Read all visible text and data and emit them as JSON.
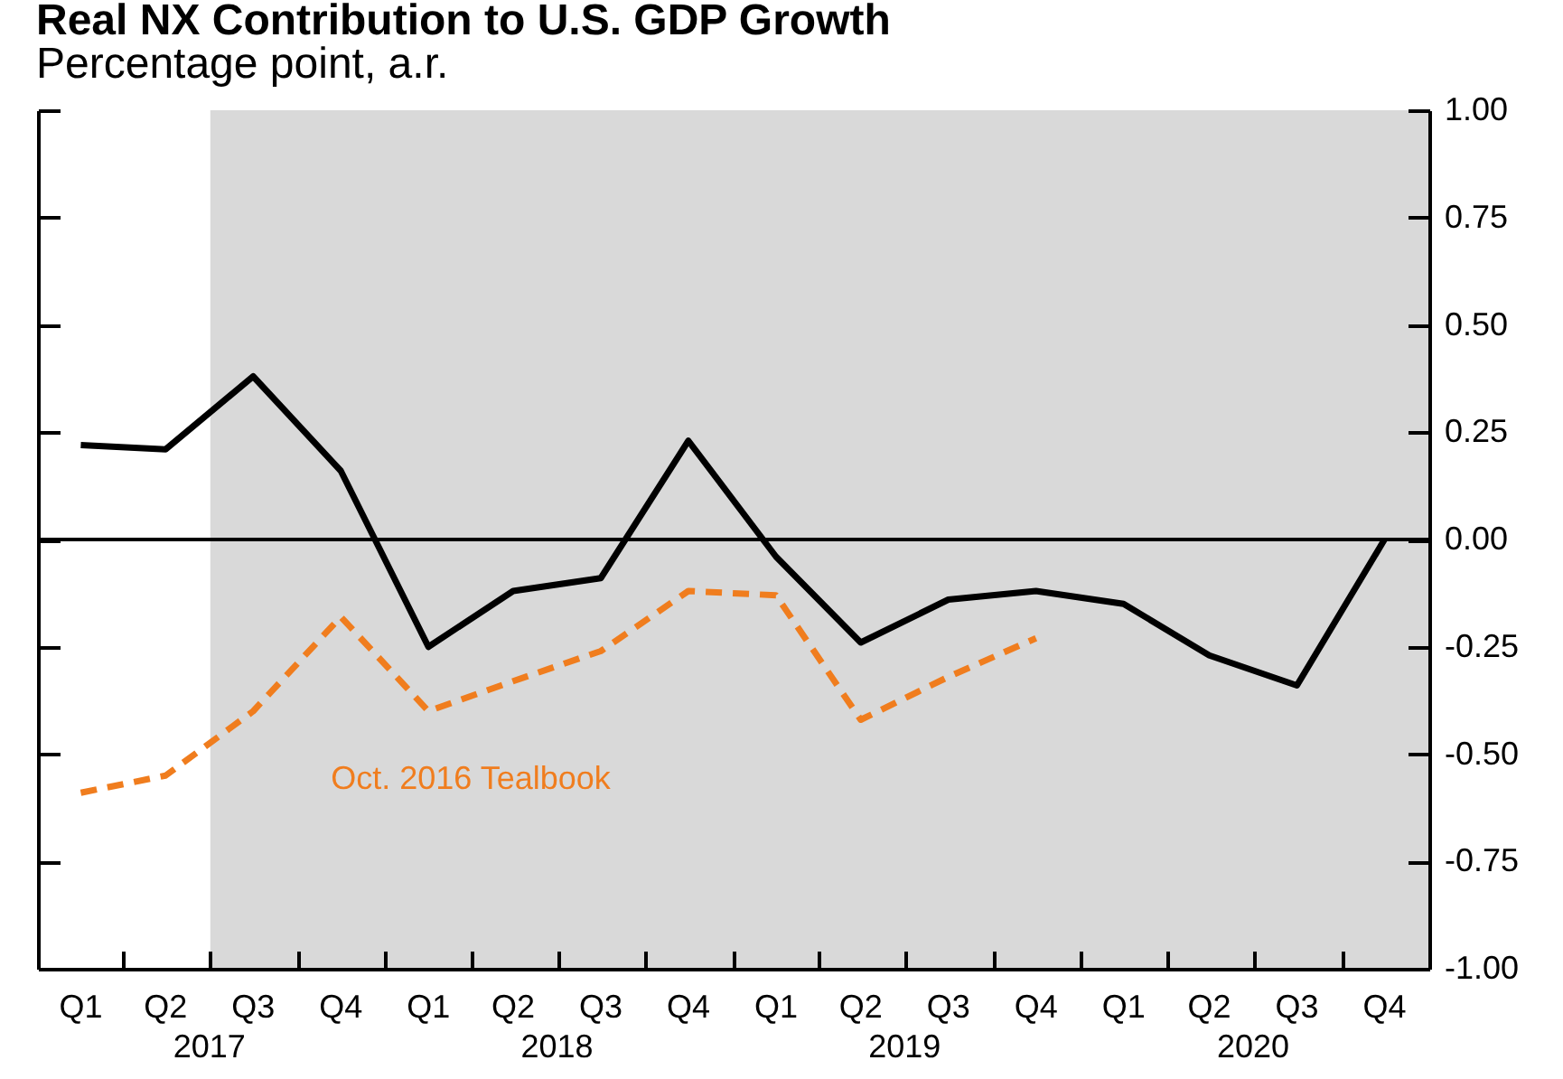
{
  "chart_data": {
    "type": "line",
    "title": "Real NX Contribution to U.S. GDP Growth",
    "ylabel": "Percentage point, a.r.",
    "x": [
      "2017-02-15",
      "2017-05-15",
      "2017-08-15",
      "2017-11-15",
      "2018-02-15",
      "2018-05-15",
      "2018-08-15",
      "2018-11-15",
      "2019-02-15",
      "2019-05-15",
      "2019-08-15",
      "2019-11-15",
      "2020-02-15",
      "2020-05-15",
      "2020-08-15",
      "2020-11-15"
    ],
    "xlim": [
      "2017-01-01",
      "2021-01-01"
    ],
    "xticks": [
      {
        "value": "2017-01-01",
        "label": null
      },
      {
        "value": "2017-02-15",
        "label": "Q1"
      },
      {
        "value": "2017-04-01",
        "label": null
      },
      {
        "value": "2017-05-15",
        "label": "Q2"
      },
      {
        "value": "2017-07-01",
        "label": null
      },
      {
        "value": "2017-08-15",
        "label": "Q3"
      },
      {
        "value": "2017-10-01",
        "label": null
      },
      {
        "value": "2017-11-15",
        "label": "Q4"
      },
      {
        "value": "2018-01-01",
        "label": null
      },
      {
        "value": "2018-02-15",
        "label": "Q1"
      },
      {
        "value": "2018-04-01",
        "label": null
      },
      {
        "value": "2018-05-15",
        "label": "Q2"
      },
      {
        "value": "2018-07-01",
        "label": null
      },
      {
        "value": "2018-08-15",
        "label": "Q3"
      },
      {
        "value": "2018-10-01",
        "label": null
      },
      {
        "value": "2018-11-15",
        "label": "Q4"
      },
      {
        "value": "2019-01-01",
        "label": null
      },
      {
        "value": "2019-02-15",
        "label": "Q1"
      },
      {
        "value": "2019-04-01",
        "label": null
      },
      {
        "value": "2019-05-15",
        "label": "Q2"
      },
      {
        "value": "2019-07-01",
        "label": null
      },
      {
        "value": "2019-08-15",
        "label": "Q3"
      },
      {
        "value": "2019-10-01",
        "label": null
      },
      {
        "value": "2019-11-15",
        "label": "Q4"
      },
      {
        "value": "2020-01-01",
        "label": null
      },
      {
        "value": "2020-02-15",
        "label": "Q1"
      },
      {
        "value": "2020-04-01",
        "label": null
      },
      {
        "value": "2020-05-15",
        "label": "Q2"
      },
      {
        "value": "2020-07-01",
        "label": null
      },
      {
        "value": "2020-08-15",
        "label": "Q3"
      },
      {
        "value": "2020-10-01",
        "label": null
      },
      {
        "value": "2020-11-15",
        "label": "Q4"
      },
      {
        "value": "2021-01-01",
        "label": null
      }
    ],
    "annotations": [
      "2017",
      "2018",
      "2019",
      "2020"
    ],
    "series": [
      {
        "color": "#000000",
        "line_style": "solid",
        "values": [
          0.22,
          0.21,
          0.38,
          0.16,
          -0.25,
          -0.12,
          -0.09,
          0.23,
          -0.04,
          -0.24,
          -0.14,
          -0.12,
          -0.15,
          -0.27,
          -0.34,
          0.0
        ]
      },
      {
        "name": "Oct. 2016 Tealbook",
        "color": "#f07d1e",
        "line_style": "dashed",
        "values": [
          -0.59,
          -0.55,
          -0.4,
          -0.18,
          -0.4,
          -0.33,
          -0.26,
          -0.12,
          -0.13,
          -0.42,
          -0.32,
          -0.23,
          null,
          null,
          null,
          null
        ]
      }
    ],
    "ylim": [
      -1.0,
      1.0
    ],
    "yticks": [
      {
        "value": -1.0,
        "label": "-1.00"
      },
      {
        "value": -0.75,
        "label": "-0.75"
      },
      {
        "value": -0.5,
        "label": "-0.50"
      },
      {
        "value": -0.25,
        "label": "-0.25"
      },
      {
        "value": 0,
        "label": "0.00"
      },
      {
        "value": 0.25,
        "label": "0.25"
      },
      {
        "value": 0.5,
        "label": "0.50"
      },
      {
        "value": 0.75,
        "label": "0.75"
      },
      {
        "value": 1.0,
        "label": "1.00"
      }
    ],
    "ref_lines": [
      {
        "axis": "y",
        "value": 0,
        "color": "#000000"
      }
    ],
    "bands": [
      {
        "axis": "x",
        "from": "2017-07-01",
        "to": "2021-01-01",
        "color": "#d9d9d9"
      }
    ],
    "grid": false,
    "legend": false
  }
}
